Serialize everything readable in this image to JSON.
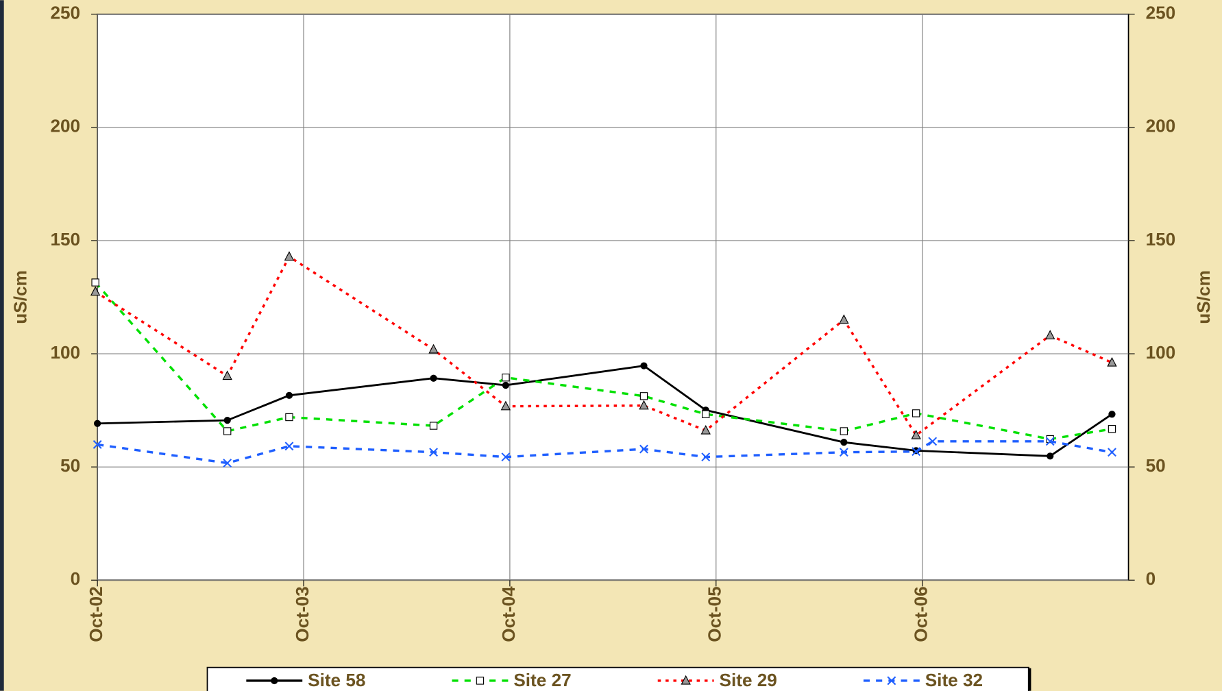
{
  "chart_data": {
    "type": "line",
    "ylabel": "uS/cm",
    "y2label": "uS/cm",
    "xlim": [
      2002.75,
      2007.75
    ],
    "xticks": [
      {
        "value": 2002.75,
        "label": "Oct-02"
      },
      {
        "value": 2003.75,
        "label": "Oct-03"
      },
      {
        "value": 2004.75,
        "label": "Oct-04"
      },
      {
        "value": 2005.75,
        "label": "Oct-05"
      },
      {
        "value": 2006.75,
        "label": "Oct-06"
      }
    ],
    "ylim": [
      0,
      250
    ],
    "yticks": [
      0,
      50,
      100,
      150,
      200,
      250
    ],
    "y2lim": [
      0,
      250
    ],
    "y2ticks": [
      0,
      50,
      100,
      150,
      200,
      250
    ],
    "grid": true,
    "legend": "bottom",
    "series": [
      {
        "name": "Site 58",
        "color": "#000000",
        "dash": "solid",
        "marker": "circle",
        "x": [
          2002.75,
          2003.38,
          2003.68,
          2004.38,
          2004.73,
          2005.4,
          2005.7,
          2006.37,
          2006.72,
          2007.37,
          2007.67
        ],
        "values": [
          69.2,
          70.6,
          81.6,
          89.2,
          86.1,
          94.7,
          75.1,
          60.9,
          57.2,
          54.8,
          73.3
        ]
      },
      {
        "name": "Site 27",
        "color": "#00e000",
        "dash": "dashed",
        "marker": "square",
        "x": [
          2002.74,
          2003.38,
          2003.68,
          2004.38,
          2004.73,
          2005.4,
          2005.7,
          2006.37,
          2006.72,
          2007.37,
          2007.67
        ],
        "values": [
          131.5,
          65.8,
          72,
          68.2,
          89.5,
          81.3,
          73.3,
          65.8,
          73.7,
          62.3,
          66.8
        ]
      },
      {
        "name": "Site 29",
        "color": "#ff0000",
        "dash": "dotted",
        "marker": "triangle",
        "x": [
          2002.74,
          2003.38,
          2003.68,
          2004.38,
          2004.73,
          2005.4,
          2005.7,
          2006.37,
          2006.72,
          2007.37,
          2007.67
        ],
        "values": [
          127.4,
          90.2,
          142.9,
          101.9,
          76.8,
          77.1,
          66.1,
          115,
          64,
          108.1,
          96.1
        ]
      },
      {
        "name": "Site 32",
        "color": "#1f5fff",
        "dash": "dashed",
        "marker": "x",
        "x": [
          2002.75,
          2003.38,
          2003.68,
          2004.38,
          2004.73,
          2005.4,
          2005.7,
          2006.37,
          2006.72,
          2006.8,
          2007.37,
          2007.67
        ],
        "values": [
          59.9,
          51.7,
          59.2,
          56.5,
          54.4,
          57.9,
          54.4,
          56.5,
          56.8,
          61.3,
          61.3,
          56.5
        ]
      }
    ]
  }
}
